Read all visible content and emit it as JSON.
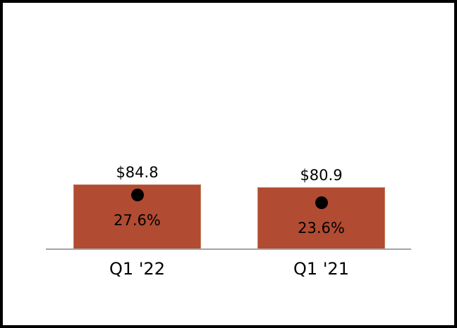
{
  "frame": {
    "background_color": "#ffffff",
    "border_color": "#000000"
  },
  "chart_data": {
    "type": "bar",
    "categories": [
      "Q1 '22",
      "Q1 '21"
    ],
    "series": [
      {
        "name": "dollar-value-bars",
        "type": "bar",
        "values": [
          84.8,
          80.9
        ],
        "data_labels": [
          "$84.8",
          "$80.9"
        ],
        "color": "#b14b32"
      },
      {
        "name": "percent-markers",
        "type": "point",
        "values": [
          27.6,
          23.6
        ],
        "data_labels": [
          "27.6%",
          "23.6%"
        ],
        "color": "#000000"
      }
    ],
    "title": "",
    "xlabel": "",
    "ylabel": "",
    "ylim": [
      0,
      100
    ],
    "grid": false,
    "legend": "none",
    "axis_line_color": "#a3a3a3",
    "baseline": 0
  }
}
